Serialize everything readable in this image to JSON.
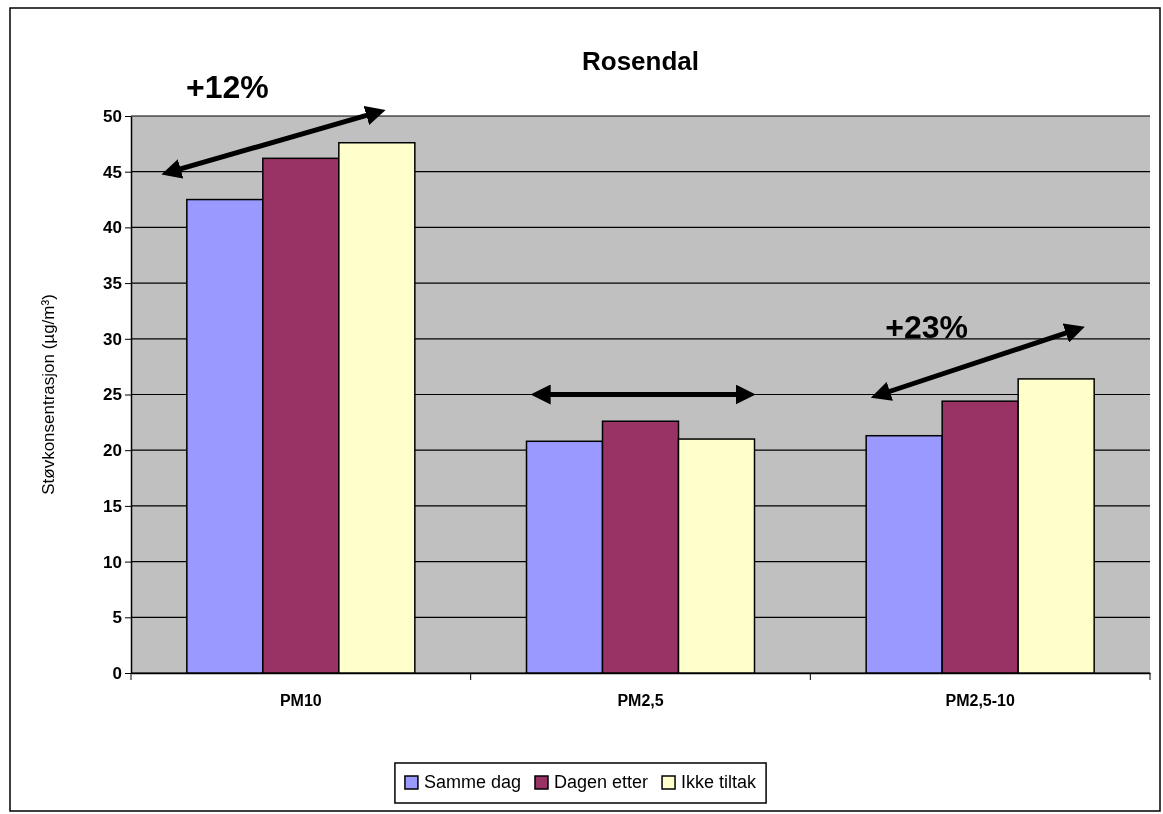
{
  "chart_data": {
    "type": "bar",
    "title": "Rosendal",
    "ylabel": "Støvkonsentrasjon (µg/m³)",
    "categories": [
      "PM10",
      "PM2,5",
      "PM2,5-10"
    ],
    "series": [
      {
        "name": "Samme dag",
        "color": "#9999ff",
        "values": [
          42.5,
          20.8,
          21.3
        ]
      },
      {
        "name": "Dagen etter",
        "color": "#993366",
        "values": [
          46.2,
          22.6,
          24.4
        ]
      },
      {
        "name": "Ikke tiltak",
        "color": "#ffffcc",
        "values": [
          47.6,
          21.0,
          26.4
        ]
      }
    ],
    "ylim": [
      0,
      50
    ],
    "yticks": [
      0,
      5,
      10,
      15,
      20,
      25,
      30,
      35,
      40,
      45,
      50
    ],
    "grid": "y",
    "legend": "bottom",
    "annotations": [
      "+12%",
      "+23%"
    ]
  }
}
